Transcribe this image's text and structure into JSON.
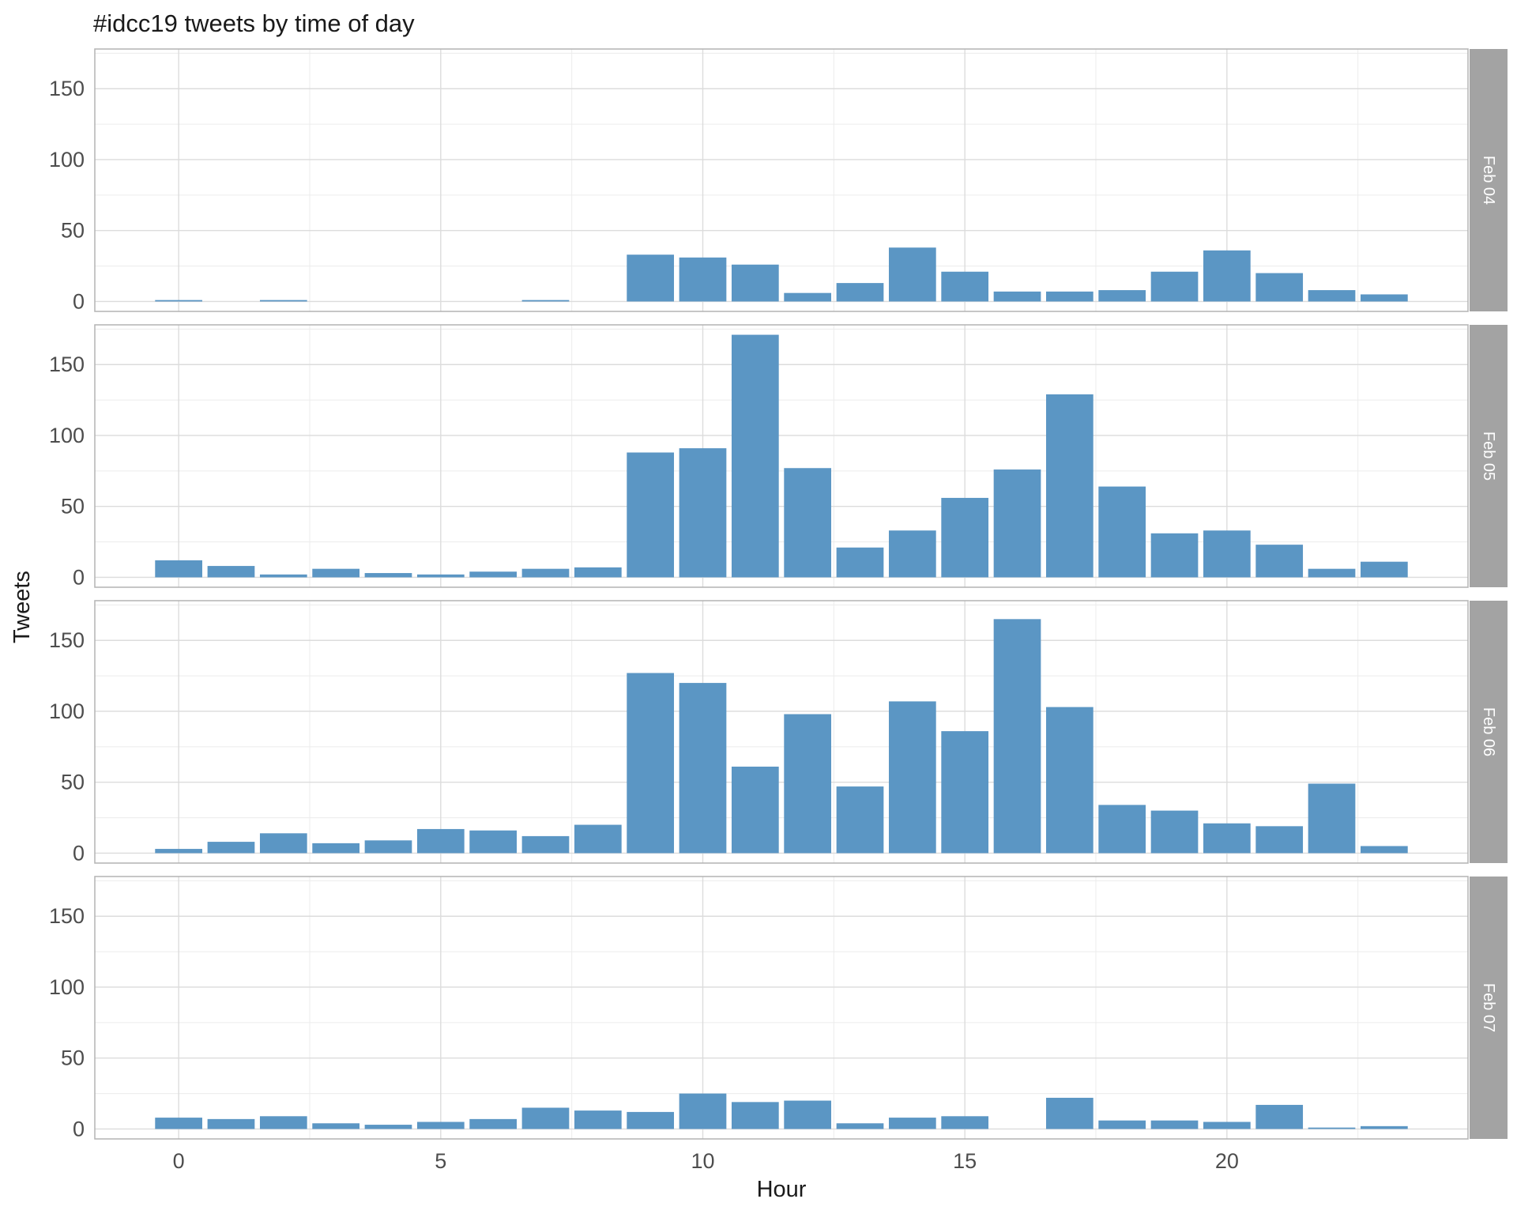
{
  "chart_data": {
    "type": "bar",
    "title": "#idcc19 tweets by time of day",
    "xlabel": "Hour",
    "ylabel": "Tweets",
    "facet_layout": "vertical",
    "xlim": [
      -1.6,
      24.6
    ],
    "ylim": [
      -7,
      178
    ],
    "x_ticks": [
      0,
      5,
      10,
      15,
      20
    ],
    "y_ticks": [
      0,
      50,
      100,
      150
    ],
    "grid": true,
    "bar_color": "#5b96c4",
    "strip_color": "#a3a3a3",
    "panel_border_color": "#b3b3b3",
    "grid_major_color": "#dcdcdc",
    "grid_minor_color": "#ececec",
    "hours": [
      0,
      1,
      2,
      3,
      4,
      5,
      6,
      7,
      8,
      9,
      10,
      11,
      12,
      13,
      14,
      15,
      16,
      17,
      18,
      19,
      20,
      21,
      22,
      23
    ],
    "facets": [
      {
        "name": "Feb 04",
        "values": [
          1,
          0,
          1,
          0,
          0,
          0,
          0,
          1,
          0,
          33,
          31,
          26,
          6,
          13,
          38,
          21,
          7,
          7,
          8,
          21,
          36,
          20,
          8,
          5
        ]
      },
      {
        "name": "Feb 05",
        "values": [
          12,
          8,
          2,
          6,
          3,
          2,
          4,
          6,
          7,
          88,
          91,
          171,
          77,
          21,
          33,
          56,
          76,
          129,
          64,
          31,
          33,
          23,
          6,
          11
        ]
      },
      {
        "name": "Feb 06",
        "values": [
          3,
          8,
          14,
          7,
          9,
          17,
          16,
          12,
          20,
          127,
          120,
          61,
          98,
          47,
          107,
          86,
          165,
          103,
          34,
          30,
          21,
          19,
          49,
          5
        ]
      },
      {
        "name": "Feb 07",
        "values": [
          8,
          7,
          9,
          4,
          3,
          5,
          7,
          15,
          13,
          12,
          25,
          19,
          20,
          4,
          8,
          9,
          0,
          22,
          6,
          6,
          5,
          17,
          1,
          2
        ]
      }
    ]
  }
}
